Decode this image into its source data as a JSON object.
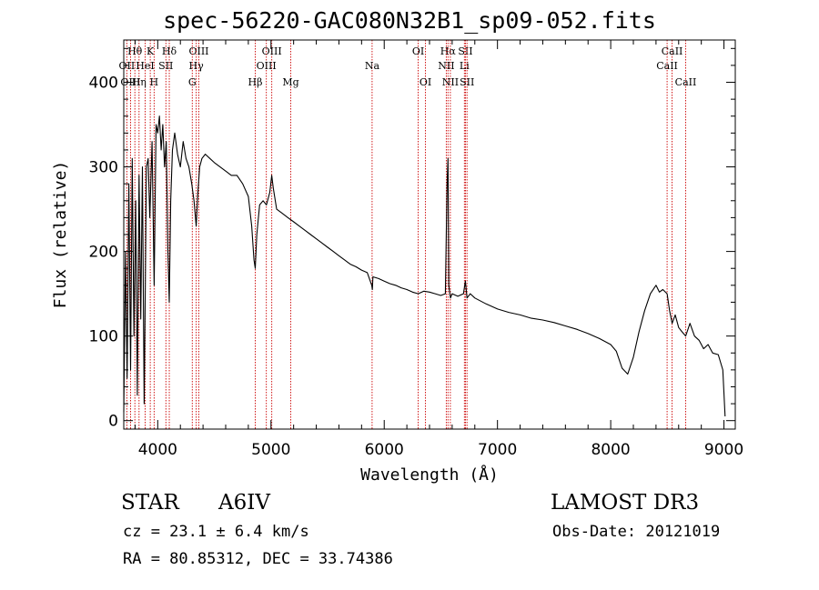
{
  "chart_data": {
    "type": "line",
    "title": "spec-56220-GAC080N32B1_sp09-052.fits",
    "xlabel": "Wavelength (Å)",
    "ylabel": "Flux (relative)",
    "xlim": [
      3700,
      9100
    ],
    "ylim": [
      -10,
      450
    ],
    "xticks": [
      4000,
      5000,
      6000,
      7000,
      8000,
      9000
    ],
    "yticks": [
      0,
      100,
      200,
      300,
      400
    ],
    "series": [
      {
        "name": "spectrum",
        "color": "#000000",
        "x": [
          3700,
          3715,
          3730,
          3745,
          3760,
          3775,
          3790,
          3805,
          3820,
          3835,
          3850,
          3865,
          3880,
          3890,
          3900,
          3915,
          3930,
          3950,
          3968,
          3985,
          4000,
          4015,
          4030,
          4045,
          4060,
          4075,
          4090,
          4102,
          4115,
          4130,
          4150,
          4175,
          4200,
          4225,
          4250,
          4275,
          4300,
          4320,
          4340,
          4355,
          4370,
          4390,
          4420,
          4460,
          4500,
          4550,
          4600,
          4650,
          4700,
          4750,
          4800,
          4830,
          4850,
          4861,
          4875,
          4900,
          4930,
          4960,
          4990,
          5007,
          5020,
          5050,
          5100,
          5150,
          5200,
          5250,
          5300,
          5350,
          5400,
          5450,
          5500,
          5550,
          5600,
          5650,
          5700,
          5750,
          5800,
          5850,
          5890,
          5895,
          5900,
          5950,
          6000,
          6050,
          6100,
          6150,
          6200,
          6250,
          6300,
          6350,
          6400,
          6450,
          6500,
          6540,
          6555,
          6563,
          6570,
          6585,
          6600,
          6650,
          6700,
          6717,
          6731,
          6760,
          6800,
          6900,
          7000,
          7100,
          7200,
          7300,
          7400,
          7500,
          7600,
          7700,
          7800,
          7900,
          8000,
          8050,
          8100,
          8150,
          8200,
          8250,
          8300,
          8350,
          8400,
          8430,
          8460,
          8498,
          8520,
          8542,
          8570,
          8600,
          8630,
          8662,
          8700,
          8740,
          8780,
          8820,
          8860,
          8900,
          8950,
          8990,
          9010
        ],
        "values": [
          10,
          200,
          50,
          280,
          60,
          310,
          100,
          260,
          30,
          290,
          120,
          300,
          20,
          150,
          300,
          310,
          240,
          330,
          160,
          350,
          340,
          360,
          320,
          350,
          300,
          330,
          200,
          140,
          260,
          320,
          340,
          315,
          300,
          330,
          310,
          300,
          280,
          260,
          230,
          270,
          300,
          310,
          315,
          310,
          305,
          300,
          295,
          290,
          290,
          280,
          265,
          230,
          190,
          180,
          220,
          255,
          260,
          255,
          270,
          290,
          275,
          250,
          245,
          240,
          235,
          230,
          225,
          220,
          215,
          210,
          205,
          200,
          195,
          190,
          185,
          182,
          178,
          175,
          160,
          155,
          170,
          168,
          165,
          162,
          160,
          157,
          155,
          152,
          150,
          153,
          152,
          150,
          148,
          150,
          280,
          310,
          160,
          145,
          150,
          147,
          150,
          165,
          145,
          150,
          145,
          138,
          132,
          128,
          125,
          121,
          119,
          116,
          112,
          108,
          103,
          97,
          90,
          82,
          62,
          55,
          75,
          105,
          130,
          150,
          160,
          152,
          155,
          150,
          130,
          115,
          125,
          110,
          105,
          100,
          115,
          100,
          95,
          85,
          90,
          80,
          78,
          60,
          5
        ]
      }
    ],
    "lines": [
      {
        "label": "Hθ",
        "x": 3798,
        "row": 1
      },
      {
        "label": "OII",
        "x": 3727,
        "row": 2
      },
      {
        "label": "OIII",
        "x": 3760,
        "row": 3
      },
      {
        "label": "K",
        "x": 3934,
        "row": 1
      },
      {
        "label": "HeI",
        "x": 3889,
        "row": 2
      },
      {
        "label": "Hη",
        "x": 3835,
        "row": 3
      },
      {
        "label": "H",
        "x": 3968,
        "row": 3
      },
      {
        "label": "Hδ",
        "x": 4102,
        "row": 1
      },
      {
        "label": "SII",
        "x": 4072,
        "row": 2
      },
      {
        "label": "OIII",
        "x": 4363,
        "row": 1
      },
      {
        "label": "Hγ",
        "x": 4340,
        "row": 2
      },
      {
        "label": "G",
        "x": 4305,
        "row": 3
      },
      {
        "label": "OIII",
        "x": 5007,
        "row": 1
      },
      {
        "label": "OIII",
        "x": 4959,
        "row": 2
      },
      {
        "label": "Hβ",
        "x": 4861,
        "row": 3
      },
      {
        "label": "Mg",
        "x": 5175,
        "row": 3
      },
      {
        "label": "Na",
        "x": 5893,
        "row": 2
      },
      {
        "label": "OI",
        "x": 6300,
        "row": 1
      },
      {
        "label": "OI",
        "x": 6364,
        "row": 3
      },
      {
        "label": "Hα",
        "x": 6563,
        "row": 1
      },
      {
        "label": "SII",
        "x": 6717,
        "row": 1
      },
      {
        "label": "NII",
        "x": 6548,
        "row": 2
      },
      {
        "label": "Li",
        "x": 6708,
        "row": 2
      },
      {
        "label": "NII",
        "x": 6584,
        "row": 3
      },
      {
        "label": "SII",
        "x": 6731,
        "row": 3
      },
      {
        "label": "CaII",
        "x": 8542,
        "row": 1
      },
      {
        "label": "CaII",
        "x": 8498,
        "row": 2
      },
      {
        "label": "CaII",
        "x": 8662,
        "row": 3
      }
    ],
    "line_color": "#cc0000"
  },
  "info": {
    "class": "STAR",
    "subclass": "A6IV",
    "survey": "LAMOST DR3",
    "cz": "cz = 23.1 ± 6.4 km/s",
    "obs_date": "Obs-Date: 20121019",
    "radec": "RA =  80.85312, DEC =  33.74386"
  }
}
